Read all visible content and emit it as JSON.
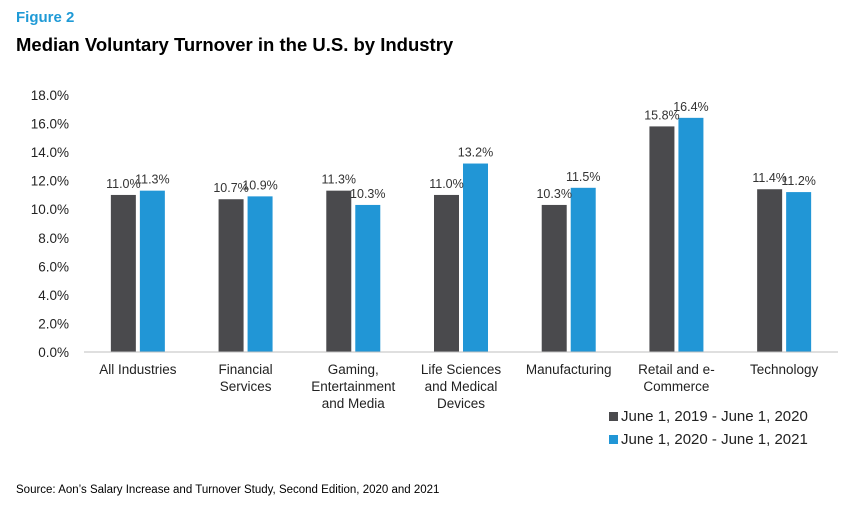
{
  "figure_label": "Figure 2",
  "source": "Source: Aon’s Salary Increase and Turnover Study, Second Edition, 2020 and 2021",
  "chart_data": {
    "type": "bar",
    "title": "Median Voluntary Turnover in the U.S. by Industry",
    "xlabel": "",
    "ylabel": "",
    "ylim": [
      0,
      18
    ],
    "ytick_step": 2,
    "ytick_format": "percent_1dp",
    "grid": false,
    "legend_position": "bottom-right",
    "categories": [
      [
        "All Industries"
      ],
      [
        "Financial",
        "Services"
      ],
      [
        "Gaming,",
        "Entertainment",
        "and Media"
      ],
      [
        "Life Sciences",
        "and Medical",
        "Devices"
      ],
      [
        "Manufacturing"
      ],
      [
        "Retail and e-",
        "Commerce"
      ],
      [
        "Technology"
      ]
    ],
    "series": [
      {
        "name": "June 1, 2019 - June 1, 2020",
        "color": "#4a4a4d",
        "values": [
          11.0,
          10.7,
          11.3,
          11.0,
          10.3,
          15.8,
          11.4
        ],
        "labels": [
          "11.0%",
          "10.7%",
          "11.3%",
          "11.0%",
          "10.3%",
          "15.8%",
          "11.4%"
        ]
      },
      {
        "name": "June 1, 2020 - June 1, 2021",
        "color": "#2196d6",
        "values": [
          11.3,
          10.9,
          10.3,
          13.2,
          11.5,
          16.4,
          11.2
        ],
        "labels": [
          "11.3%",
          "10.9%",
          "10.3%",
          "13.2%",
          "11.5%",
          "16.4%",
          "11.2%"
        ]
      }
    ]
  }
}
